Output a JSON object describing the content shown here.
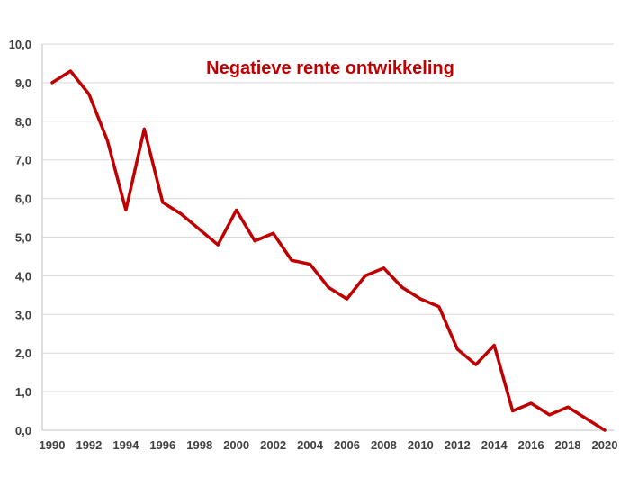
{
  "chart_data": {
    "type": "line",
    "title": "Negatieve rente ontwikkeling",
    "xlabel": "",
    "ylabel": "",
    "xlim": [
      1990,
      2020
    ],
    "ylim": [
      0,
      10
    ],
    "grid": true,
    "line_color": "#c00000",
    "grid_color": "#d9d9d9",
    "x_tick_labels": [
      "1990",
      "1992",
      "1994",
      "1996",
      "1998",
      "2000",
      "2002",
      "2004",
      "2006",
      "2008",
      "2010",
      "2012",
      "2014",
      "2016",
      "2018",
      "2020"
    ],
    "y_tick_labels": [
      "0,0",
      "1,0",
      "2,0",
      "3,0",
      "4,0",
      "5,0",
      "6,0",
      "7,0",
      "8,0",
      "9,0",
      "10,0"
    ],
    "series": [
      {
        "x": [
          1990,
          1991,
          1992,
          1993,
          1994,
          1995,
          1996,
          1997,
          1998,
          1999,
          2000,
          2001,
          2002,
          2003,
          2004,
          2005,
          2006,
          2007,
          2008,
          2009,
          2010,
          2011,
          2012,
          2013,
          2014,
          2015,
          2016,
          2017,
          2018,
          2019,
          2020
        ],
        "values": [
          9.0,
          9.3,
          8.7,
          7.5,
          5.7,
          7.8,
          5.9,
          5.6,
          5.2,
          4.8,
          5.7,
          4.9,
          5.1,
          4.4,
          4.3,
          3.7,
          3.4,
          4.0,
          4.2,
          3.7,
          3.4,
          3.2,
          2.1,
          1.7,
          2.2,
          0.5,
          0.7,
          0.4,
          0.6,
          0.3,
          0.0
        ]
      }
    ]
  }
}
